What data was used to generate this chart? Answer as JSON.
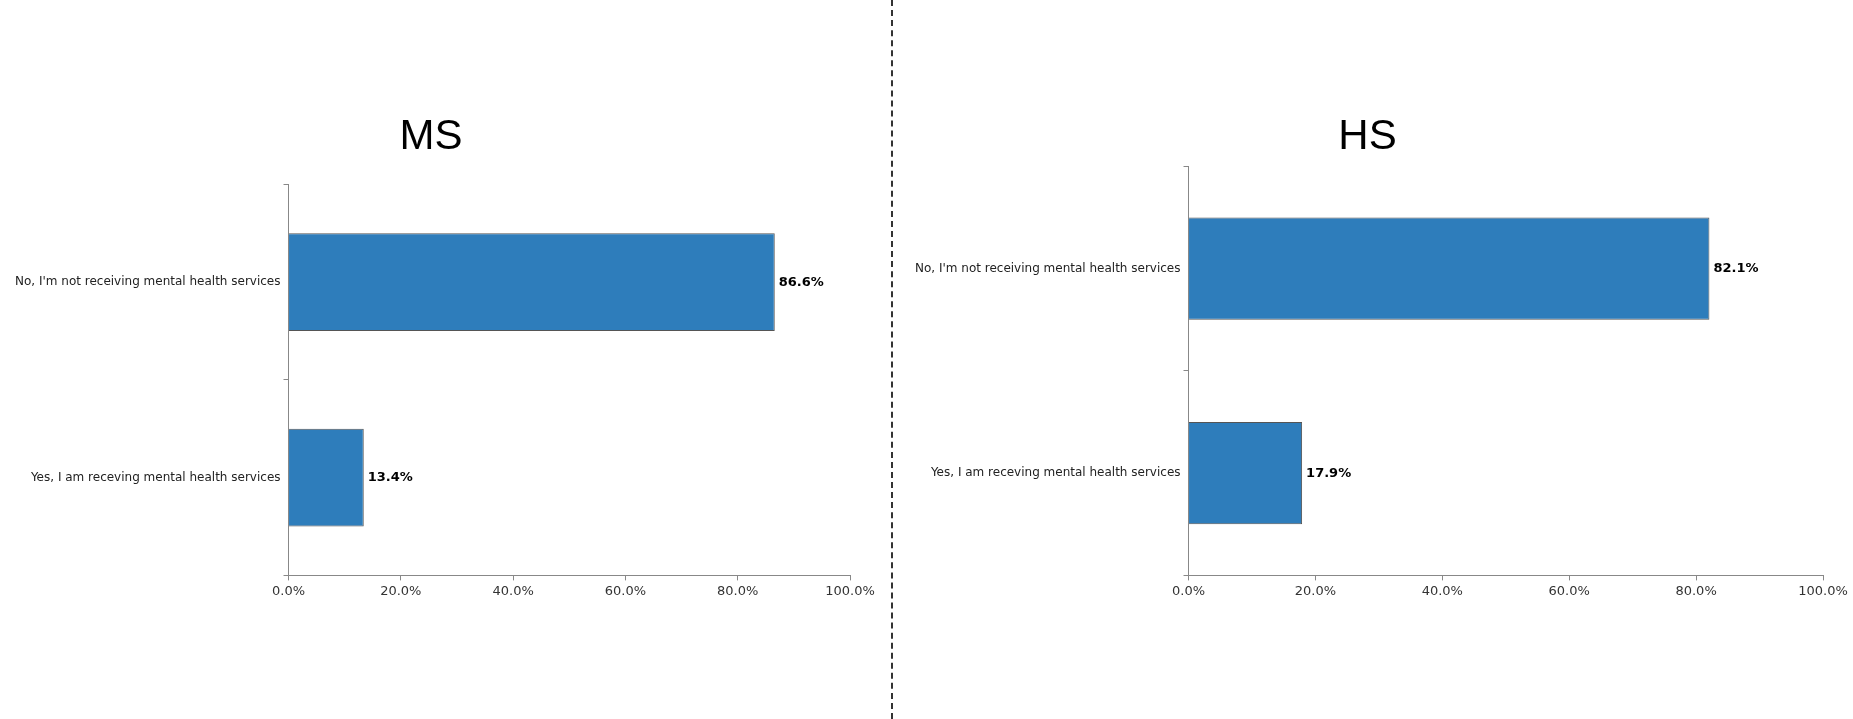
{
  "chart_data": [
    {
      "type": "bar",
      "orientation": "horizontal",
      "title": "MS",
      "categories": [
        "No, I'm not receiving mental health services",
        "Yes, I am receving mental health services"
      ],
      "values": [
        86.6,
        13.4
      ],
      "color": "#2e7dbb",
      "value_labels": [
        "86.6%",
        "13.4%"
      ],
      "xlim": [
        0,
        100
      ],
      "xticks": [
        {
          "value": 0,
          "label": "0.0%"
        },
        {
          "value": 20,
          "label": "20.0%"
        },
        {
          "value": 40,
          "label": "40.0%"
        },
        {
          "value": 60,
          "label": "60.0%"
        },
        {
          "value": 80,
          "label": "80.0%"
        },
        {
          "value": 100,
          "label": "100.0%"
        }
      ],
      "grid": false,
      "legend": false
    },
    {
      "type": "bar",
      "orientation": "horizontal",
      "title": "HS",
      "categories": [
        "No, I'm not receiving mental health services",
        "Yes, I am receving mental health services"
      ],
      "values": [
        82.1,
        17.9
      ],
      "color": "#2e7dbb",
      "value_labels": [
        "82.1%",
        "17.9%"
      ],
      "xlim": [
        0,
        100
      ],
      "xticks": [
        {
          "value": 0,
          "label": "0.0%"
        },
        {
          "value": 20,
          "label": "20.0%"
        },
        {
          "value": 40,
          "label": "40.0%"
        },
        {
          "value": 60,
          "label": "60.0%"
        },
        {
          "value": 80,
          "label": "80.0%"
        },
        {
          "value": 100,
          "label": "100.0%"
        }
      ],
      "grid": false,
      "legend": false
    }
  ]
}
